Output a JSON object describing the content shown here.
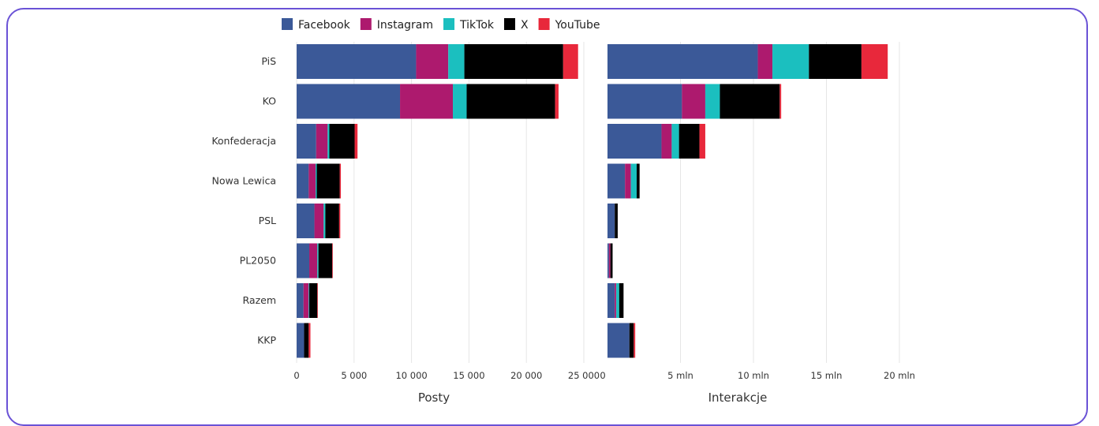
{
  "colors": {
    "Facebook": "#3b5998",
    "Instagram": "#ad1a6e",
    "TikTok": "#1bbfbf",
    "X": "#000000",
    "YouTube": "#e8283b",
    "grid": "#e6e6e6",
    "frame": "#6a52d6"
  },
  "chart_data": {
    "type": "bar",
    "orientation": "horizontal-stacked",
    "legend": [
      "Facebook",
      "Instagram",
      "TikTok",
      "X",
      "YouTube"
    ],
    "legend_placement": "top",
    "categories": [
      "PiS",
      "KO",
      "Konfederacja",
      "Nowa Lewica",
      "PSL",
      "PL2050",
      "Razem",
      "KKP"
    ],
    "panels": [
      {
        "xlabel": "Posty",
        "xlim": [
          0,
          25000
        ],
        "ticks": [
          0,
          5000,
          10000,
          15000,
          20000,
          25000
        ],
        "tick_labels": [
          "0",
          "5 000",
          "10 000",
          "15 000",
          "20 000",
          "25 000"
        ],
        "grid": true,
        "series": [
          {
            "name": "Facebook",
            "values": [
              10400,
              9000,
              1700,
              1050,
              1550,
              1100,
              600,
              650
            ]
          },
          {
            "name": "Instagram",
            "values": [
              2800,
              4600,
              1000,
              600,
              800,
              700,
              450,
              0
            ]
          },
          {
            "name": "TikTok",
            "values": [
              1400,
              1200,
              150,
              100,
              150,
              100,
              50,
              0
            ]
          },
          {
            "name": "X",
            "values": [
              8600,
              7700,
              2200,
              2000,
              1200,
              1200,
              700,
              400
            ]
          },
          {
            "name": "YouTube",
            "values": [
              1300,
              300,
              250,
              100,
              100,
              50,
              50,
              150
            ]
          }
        ]
      },
      {
        "xlabel": "Interakcje",
        "xlim": [
          0,
          20000000
        ],
        "ticks": [
          5000000,
          10000000,
          15000000,
          20000000
        ],
        "tick_labels": [
          "5 mln",
          "10 mln",
          "15 mln",
          "20 mln"
        ],
        "leading_label": "0",
        "grid": true,
        "series": [
          {
            "name": "Facebook",
            "values": [
              10300000,
              5100000,
              3700000,
              1200000,
              500000,
              100000,
              500000,
              1500000
            ]
          },
          {
            "name": "Instagram",
            "values": [
              1000000,
              1600000,
              700000,
              400000,
              0,
              100000,
              100000,
              0
            ]
          },
          {
            "name": "TikTok",
            "values": [
              2500000,
              1000000,
              500000,
              400000,
              0,
              0,
              200000,
              0
            ]
          },
          {
            "name": "X",
            "values": [
              3600000,
              4100000,
              1400000,
              200000,
              200000,
              150000,
              300000,
              300000
            ]
          },
          {
            "name": "YouTube",
            "values": [
              1800000,
              100000,
              400000,
              0,
              0,
              0,
              0,
              100000
            ]
          }
        ]
      }
    ]
  }
}
